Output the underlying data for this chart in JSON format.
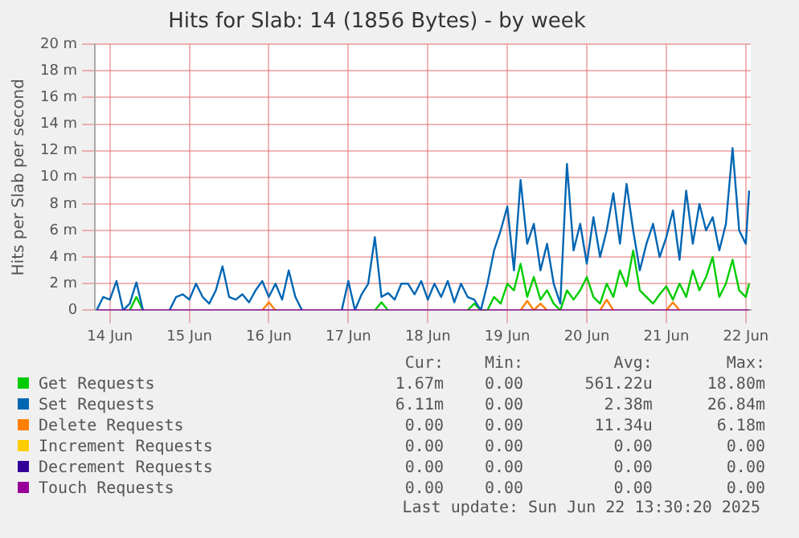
{
  "chart_data": {
    "type": "line",
    "title": "Hits for Slab: 14 (1856 Bytes) - by week",
    "ylabel": "Hits per Slab per second",
    "x": [
      "2025-06-14T08:00",
      "2025-06-14T10:00",
      "2025-06-14T12:00",
      "2025-06-14T14:00",
      "2025-06-14T16:00",
      "2025-06-14T18:00",
      "2025-06-14T20:00",
      "2025-06-14T22:00",
      "2025-06-15T00:00",
      "2025-06-15T02:00",
      "2025-06-15T04:00",
      "2025-06-15T06:00",
      "2025-06-15T08:00",
      "2025-06-15T10:00",
      "2025-06-15T12:00",
      "2025-06-15T14:00",
      "2025-06-15T16:00",
      "2025-06-15T18:00",
      "2025-06-15T20:00",
      "2025-06-15T22:00",
      "2025-06-16T00:00",
      "2025-06-16T02:00",
      "2025-06-16T04:00",
      "2025-06-16T06:00",
      "2025-06-16T08:00",
      "2025-06-16T10:00",
      "2025-06-16T12:00",
      "2025-06-16T14:00",
      "2025-06-16T16:00",
      "2025-06-16T18:00",
      "2025-06-16T20:00",
      "2025-06-16T22:00",
      "2025-06-17T00:00",
      "2025-06-17T02:00",
      "2025-06-17T04:00",
      "2025-06-17T06:00",
      "2025-06-17T08:00",
      "2025-06-17T10:00",
      "2025-06-17T12:00",
      "2025-06-17T14:00",
      "2025-06-17T16:00",
      "2025-06-17T18:00",
      "2025-06-17T20:00",
      "2025-06-17T22:00",
      "2025-06-18T00:00",
      "2025-06-18T02:00",
      "2025-06-18T04:00",
      "2025-06-18T06:00",
      "2025-06-18T08:00",
      "2025-06-18T10:00",
      "2025-06-18T12:00",
      "2025-06-18T14:00",
      "2025-06-18T16:00",
      "2025-06-18T18:00",
      "2025-06-18T20:00",
      "2025-06-18T22:00",
      "2025-06-19T00:00",
      "2025-06-19T02:00",
      "2025-06-19T04:00",
      "2025-06-19T06:00",
      "2025-06-19T08:00",
      "2025-06-19T10:00",
      "2025-06-19T12:00",
      "2025-06-19T14:00",
      "2025-06-19T16:00",
      "2025-06-19T18:00",
      "2025-06-19T20:00",
      "2025-06-19T22:00",
      "2025-06-20T00:00",
      "2025-06-20T02:00",
      "2025-06-20T04:00",
      "2025-06-20T06:00",
      "2025-06-20T08:00",
      "2025-06-20T10:00",
      "2025-06-20T12:00",
      "2025-06-20T14:00",
      "2025-06-20T16:00",
      "2025-06-20T18:00",
      "2025-06-20T20:00",
      "2025-06-20T22:00",
      "2025-06-21T00:00",
      "2025-06-21T02:00",
      "2025-06-21T04:00",
      "2025-06-21T06:00",
      "2025-06-21T08:00",
      "2025-06-21T10:00",
      "2025-06-21T12:00",
      "2025-06-21T14:00",
      "2025-06-21T16:00",
      "2025-06-21T18:00",
      "2025-06-21T20:00",
      "2025-06-21T22:00",
      "2025-06-22T00:00",
      "2025-06-22T02:00",
      "2025-06-22T04:00",
      "2025-06-22T06:00",
      "2025-06-22T08:00",
      "2025-06-22T10:00",
      "2025-06-22T12:00",
      "2025-06-22T13:00"
    ],
    "series": [
      {
        "name": "Get Requests",
        "color": "#00cc00",
        "values": [
          null,
          null,
          null,
          null,
          null,
          0,
          1,
          0,
          null,
          null,
          null,
          null,
          null,
          null,
          null,
          null,
          null,
          null,
          null,
          null,
          null,
          null,
          null,
          null,
          null,
          null,
          null,
          null,
          null,
          null,
          null,
          null,
          null,
          null,
          null,
          null,
          null,
          null,
          null,
          null,
          null,
          null,
          0,
          0.6,
          0,
          null,
          null,
          null,
          null,
          null,
          null,
          null,
          null,
          null,
          null,
          null,
          0,
          0.5,
          0,
          0,
          1,
          0.5,
          2,
          1.5,
          3.5,
          1,
          2.5,
          0.8,
          1.5,
          0.5,
          0,
          1.5,
          0.8,
          1.5,
          2.5,
          1,
          0.5,
          2,
          1,
          3,
          1.8,
          4.5,
          1.5,
          1,
          0.5,
          1.2,
          1.8,
          0.8,
          2,
          1,
          3,
          1.5,
          2.5,
          4,
          1,
          2,
          3.8,
          1.5,
          1,
          2
        ]
      },
      {
        "name": "Set Requests",
        "color": "#0066b3",
        "values": [
          0,
          1,
          0.8,
          2.2,
          0,
          0.5,
          2.1,
          0,
          null,
          null,
          null,
          0,
          1,
          1.2,
          0.8,
          2,
          1,
          0.5,
          1.5,
          3.3,
          1,
          0.8,
          1.2,
          0.6,
          1.5,
          2.2,
          1,
          2,
          0.8,
          3,
          1,
          0,
          null,
          null,
          null,
          null,
          null,
          0,
          2.2,
          0,
          1.2,
          2,
          5.5,
          1,
          1.3,
          0.8,
          2,
          2,
          1.2,
          2.2,
          0.8,
          2,
          1,
          2.2,
          0.6,
          2,
          1,
          0.8,
          0,
          2,
          4.5,
          6,
          7.8,
          3,
          9.8,
          5,
          6.5,
          3,
          5,
          2,
          0.5,
          11,
          4.5,
          6.5,
          3.5,
          7,
          4,
          6,
          8.8,
          5,
          9.5,
          6,
          3,
          5,
          6.5,
          4,
          5.5,
          7.5,
          3.8,
          9,
          5,
          8,
          6,
          7,
          4.5,
          6.5,
          12.2,
          6,
          5,
          9
        ]
      },
      {
        "name": "Delete Requests",
        "color": "#ff8000",
        "values": [
          null,
          null,
          null,
          null,
          null,
          null,
          null,
          null,
          null,
          null,
          null,
          null,
          null,
          null,
          null,
          null,
          null,
          null,
          null,
          null,
          null,
          null,
          null,
          null,
          null,
          0,
          0.6,
          0,
          null,
          null,
          null,
          null,
          null,
          null,
          null,
          null,
          null,
          null,
          null,
          null,
          null,
          null,
          null,
          null,
          null,
          null,
          null,
          null,
          null,
          null,
          null,
          null,
          null,
          null,
          null,
          null,
          null,
          null,
          null,
          null,
          null,
          null,
          null,
          null,
          0,
          0.7,
          0,
          0.5,
          0,
          null,
          null,
          null,
          null,
          null,
          null,
          null,
          0,
          0.8,
          0,
          null,
          null,
          null,
          null,
          null,
          null,
          null,
          0,
          0.6,
          0,
          null,
          null,
          null,
          null,
          null,
          null,
          null,
          null,
          null,
          null,
          null
        ]
      },
      {
        "name": "Increment Requests",
        "color": "#ffcc00",
        "values": [
          null,
          null,
          null,
          null,
          null,
          null,
          null,
          null,
          null,
          null,
          null,
          null,
          null,
          null,
          null,
          null,
          null,
          null,
          null,
          null,
          null,
          null,
          null,
          null,
          null,
          null,
          null,
          null,
          null,
          null,
          null,
          null,
          null,
          null,
          null,
          null,
          null,
          null,
          null,
          null,
          null,
          null,
          null,
          null,
          null,
          null,
          null,
          null,
          null,
          null,
          null,
          null,
          null,
          null,
          null,
          null,
          null,
          null,
          null,
          null,
          null,
          null,
          null,
          null,
          null,
          null,
          null,
          null,
          null,
          null,
          null,
          null,
          null,
          null,
          null,
          null,
          null,
          null,
          null,
          null,
          null,
          null,
          null,
          null,
          null,
          null,
          null,
          null,
          null,
          null,
          null,
          null,
          null,
          null,
          null,
          null,
          null,
          null,
          null,
          null
        ]
      },
      {
        "name": "Decrement Requests",
        "color": "#330099",
        "values": [
          null,
          null,
          null,
          null,
          null,
          null,
          null,
          null,
          null,
          null,
          null,
          null,
          null,
          null,
          null,
          null,
          null,
          null,
          null,
          null,
          null,
          null,
          null,
          null,
          null,
          null,
          null,
          null,
          null,
          null,
          null,
          null,
          null,
          null,
          null,
          null,
          null,
          null,
          null,
          null,
          null,
          null,
          null,
          null,
          null,
          null,
          null,
          null,
          null,
          null,
          null,
          null,
          null,
          null,
          null,
          null,
          null,
          null,
          null,
          null,
          null,
          null,
          null,
          null,
          null,
          null,
          null,
          null,
          null,
          null,
          null,
          null,
          null,
          null,
          null,
          null,
          null,
          null,
          null,
          null,
          null,
          null,
          null,
          null,
          null,
          null,
          null,
          null,
          null,
          null,
          null,
          null,
          null,
          null,
          null,
          null,
          null,
          null,
          null,
          null
        ]
      },
      {
        "name": "Touch Requests",
        "color": "#990099",
        "x": [
          "2025-06-14T08:00",
          "2025-06-22T13:00"
        ],
        "values": [
          0,
          0
        ]
      }
    ],
    "xlim": [
      "2025-06-14T07:30",
      "2025-06-22T13:30"
    ],
    "xticks": [
      {
        "value": "2025-06-14T12:00",
        "label": "14 Jun"
      },
      {
        "value": "2025-06-15T12:00",
        "label": "15 Jun"
      },
      {
        "value": "2025-06-16T12:00",
        "label": "16 Jun"
      },
      {
        "value": "2025-06-17T12:00",
        "label": "17 Jun"
      },
      {
        "value": "2025-06-18T12:00",
        "label": "18 Jun"
      },
      {
        "value": "2025-06-19T12:00",
        "label": "19 Jun"
      },
      {
        "value": "2025-06-20T12:00",
        "label": "20 Jun"
      },
      {
        "value": "2025-06-21T12:00",
        "label": "21 Jun"
      },
      {
        "value": "2025-06-22T12:00",
        "label": "22 Jun"
      }
    ],
    "ylim": [
      0,
      20
    ],
    "yticks": [
      0,
      {
        "value": 2,
        "label": "2 m"
      },
      {
        "value": 4,
        "label": "4 m"
      },
      {
        "value": 6,
        "label": "6 m"
      },
      {
        "value": 8,
        "label": "8 m"
      },
      {
        "value": 10,
        "label": "10 m"
      },
      {
        "value": 12,
        "label": "12 m"
      },
      {
        "value": 14,
        "label": "14 m"
      },
      {
        "value": 16,
        "label": "16 m"
      },
      {
        "value": 18,
        "label": "18 m"
      },
      {
        "value": 20,
        "label": "20 m"
      }
    ],
    "grid": true,
    "legend": "bottom",
    "marker": "none",
    "line_style": "solid",
    "annotations": [
      "Cur:",
      "Min:",
      "Avg:",
      "Max:",
      "1.67m",
      "0.00",
      "561.22u",
      "18.80m",
      "6.11m",
      "0.00",
      "2.38m",
      "26.84m",
      "0.00",
      "0.00",
      "11.34u",
      "6.18m",
      "0.00",
      "0.00",
      "0.00",
      "0.00",
      "0.00",
      "0.00",
      "0.00",
      "0.00",
      "0.00",
      "0.00",
      "0.00",
      "0.00",
      "Last update: Sun Jun 22 13:30:20 2025"
    ]
  }
}
